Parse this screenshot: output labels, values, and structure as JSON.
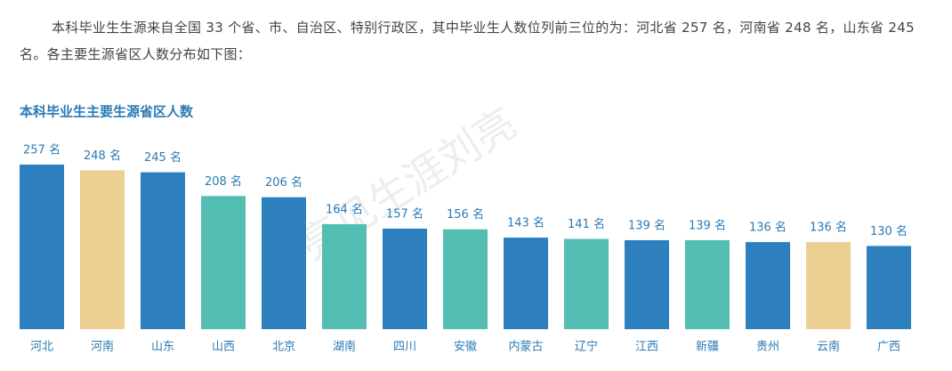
{
  "paragraph": "本科毕业生生源来自全国 33 个省、市、自治区、特别行政区，其中毕业生人数位列前三位的为：河北省 257 名，河南省 248 名，山东省 245 名。各主要生源省区人数分布如下图：",
  "chart_data": {
    "type": "bar",
    "title": "本科毕业生主要生源省区人数",
    "watermark": "亮见生涯刘亮",
    "categories": [
      "河北",
      "河南",
      "山东",
      "山西",
      "北京",
      "湖南",
      "四川",
      "安徽",
      "内蒙古",
      "辽宁",
      "江西",
      "新疆",
      "贵州",
      "云南",
      "广西"
    ],
    "values": [
      257,
      248,
      245,
      208,
      206,
      164,
      157,
      156,
      143,
      141,
      139,
      139,
      136,
      136,
      130
    ],
    "value_labels": [
      "257 名",
      "248 名",
      "245 名",
      "208 名",
      "206 名",
      "164 名",
      "157 名",
      "156 名",
      "143 名",
      "141 名",
      "139 名",
      "139 名",
      "136 名",
      "136 名",
      "130 名"
    ],
    "colors": [
      "#2e7fbe",
      "#ebcf93",
      "#2e7fbe",
      "#54beb2",
      "#2e7fbe",
      "#54beb2",
      "#2e7fbe",
      "#54beb2",
      "#2e7fbe",
      "#54beb2",
      "#2e7fbe",
      "#54beb2",
      "#2e7fbe",
      "#ebcf93",
      "#2e7fbe"
    ]
  }
}
